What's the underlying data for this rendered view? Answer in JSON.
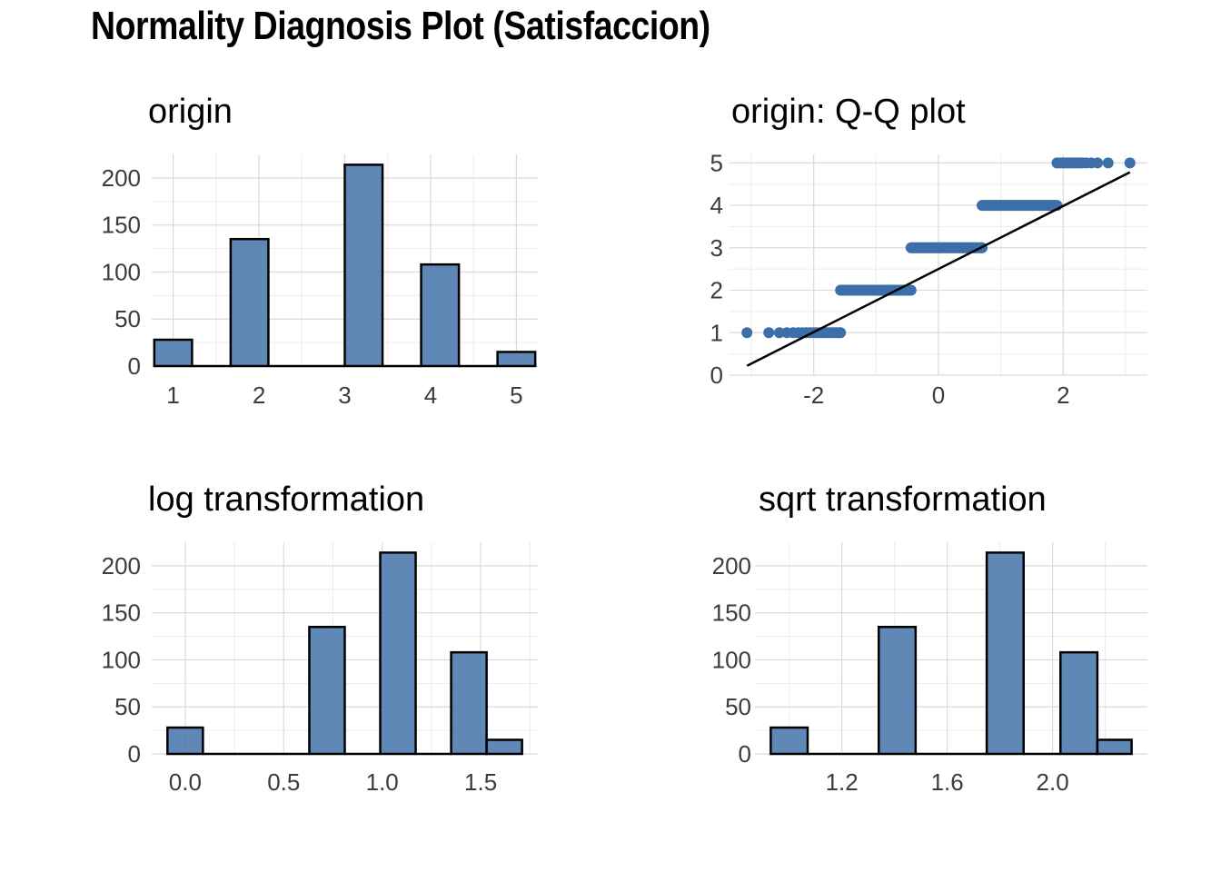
{
  "title": "Normality Diagnosis Plot (Satisfaccion)",
  "colors": {
    "fill": "#4a78ad",
    "point": "#3d6ea8",
    "grid": "#d9d9d9",
    "outline": "#000000"
  },
  "chart_data": [
    {
      "type": "bar",
      "title": "origin",
      "bins": [
        {
          "x0": 0.78,
          "x1": 1.22,
          "count": 28
        },
        {
          "x0": 1.22,
          "x1": 1.67,
          "count": 0
        },
        {
          "x0": 1.67,
          "x1": 2.11,
          "count": 135
        },
        {
          "x0": 2.11,
          "x1": 2.56,
          "count": 0
        },
        {
          "x0": 2.56,
          "x1": 3.0,
          "count": 0
        },
        {
          "x0": 3.0,
          "x1": 3.44,
          "count": 214
        },
        {
          "x0": 3.44,
          "x1": 3.89,
          "count": 0
        },
        {
          "x0": 3.89,
          "x1": 4.33,
          "count": 108
        },
        {
          "x0": 4.33,
          "x1": 4.78,
          "count": 0
        },
        {
          "x0": 4.78,
          "x1": 5.22,
          "count": 15
        }
      ],
      "xlim": [
        0.75,
        5.25
      ],
      "ylim": [
        0,
        225
      ],
      "xticks": [
        1,
        2,
        3,
        4,
        5
      ],
      "xtick_labels": [
        "1",
        "2",
        "3",
        "4",
        "5"
      ],
      "yticks": [
        0,
        50,
        100,
        150,
        200
      ],
      "ytick_labels": [
        "0",
        "50",
        "100",
        "150",
        "200"
      ],
      "grid": true
    },
    {
      "type": "scatter",
      "title": "origin: Q-Q plot",
      "groups": [
        {
          "y": 1,
          "x_min": -3.07,
          "x_max": -1.57,
          "points": [
            -3.07,
            -2.72,
            -2.55,
            -2.43,
            -2.33,
            -2.25,
            -2.18,
            -2.12,
            -2.06,
            -2.0,
            -1.95,
            -1.9,
            -1.85,
            -1.8,
            -1.76,
            -1.72,
            -1.68,
            -1.64,
            -1.6,
            -1.57
          ]
        },
        {
          "y": 2,
          "x_min": -1.57,
          "x_max": -0.44
        },
        {
          "y": 3,
          "x_min": -0.44,
          "x_max": 0.7
        },
        {
          "y": 4,
          "x_min": 0.7,
          "x_max": 1.9
        },
        {
          "y": 5,
          "x_min": 1.9,
          "x_max": 3.07,
          "points": [
            1.9,
            1.94,
            1.98,
            2.02,
            2.06,
            2.1,
            2.14,
            2.18,
            2.22,
            2.26,
            2.31,
            2.37,
            2.45,
            2.55,
            2.72,
            3.07
          ]
        }
      ],
      "reference_line": {
        "x": [
          -3.07,
          3.07
        ],
        "y": [
          0.22,
          4.78
        ]
      },
      "xlim": [
        -3.35,
        3.35
      ],
      "ylim": [
        0,
        5.2
      ],
      "xticks": [
        -2,
        0,
        2
      ],
      "xtick_labels": [
        "-2",
        "0",
        "2"
      ],
      "yticks": [
        0,
        1,
        2,
        3,
        4,
        5
      ],
      "ytick_labels": [
        "0",
        "1",
        "2",
        "3",
        "4",
        "5"
      ],
      "grid": true
    },
    {
      "type": "bar",
      "title": "log transformation",
      "bins": [
        {
          "x0": -0.09,
          "x1": 0.09,
          "count": 28
        },
        {
          "x0": 0.09,
          "x1": 0.27,
          "count": 0
        },
        {
          "x0": 0.27,
          "x1": 0.45,
          "count": 0
        },
        {
          "x0": 0.45,
          "x1": 0.63,
          "count": 0
        },
        {
          "x0": 0.63,
          "x1": 0.81,
          "count": 135
        },
        {
          "x0": 0.81,
          "x1": 0.99,
          "count": 0
        },
        {
          "x0": 0.99,
          "x1": 1.17,
          "count": 214
        },
        {
          "x0": 1.17,
          "x1": 1.35,
          "count": 0
        },
        {
          "x0": 1.35,
          "x1": 1.53,
          "count": 108
        },
        {
          "x0": 1.53,
          "x1": 1.71,
          "count": 15
        }
      ],
      "xlim": [
        -0.17,
        1.79
      ],
      "ylim": [
        0,
        225
      ],
      "xticks": [
        0.0,
        0.5,
        1.0,
        1.5
      ],
      "xtick_labels": [
        "0.0",
        "0.5",
        "1.0",
        "1.5"
      ],
      "yticks": [
        0,
        50,
        100,
        150,
        200
      ],
      "ytick_labels": [
        "0",
        "50",
        "100",
        "150",
        "200"
      ],
      "grid": true
    },
    {
      "type": "bar",
      "title": "sqrt transformation",
      "bins": [
        {
          "x0": 0.93,
          "x1": 1.07,
          "count": 28
        },
        {
          "x0": 1.07,
          "x1": 1.2,
          "count": 0
        },
        {
          "x0": 1.2,
          "x1": 1.34,
          "count": 0
        },
        {
          "x0": 1.34,
          "x1": 1.48,
          "count": 135
        },
        {
          "x0": 1.48,
          "x1": 1.62,
          "count": 0
        },
        {
          "x0": 1.62,
          "x1": 1.75,
          "count": 0
        },
        {
          "x0": 1.75,
          "x1": 1.89,
          "count": 214
        },
        {
          "x0": 1.89,
          "x1": 2.03,
          "count": 0
        },
        {
          "x0": 2.03,
          "x1": 2.17,
          "count": 108
        },
        {
          "x0": 2.17,
          "x1": 2.3,
          "count": 15
        }
      ],
      "xlim": [
        0.87,
        2.36
      ],
      "ylim": [
        0,
        225
      ],
      "xticks": [
        1.2,
        1.6,
        2.0
      ],
      "xtick_labels": [
        "1.2",
        "1.6",
        "2.0"
      ],
      "yticks": [
        0,
        50,
        100,
        150,
        200
      ],
      "ytick_labels": [
        "0",
        "50",
        "100",
        "150",
        "200"
      ],
      "grid": true
    }
  ]
}
